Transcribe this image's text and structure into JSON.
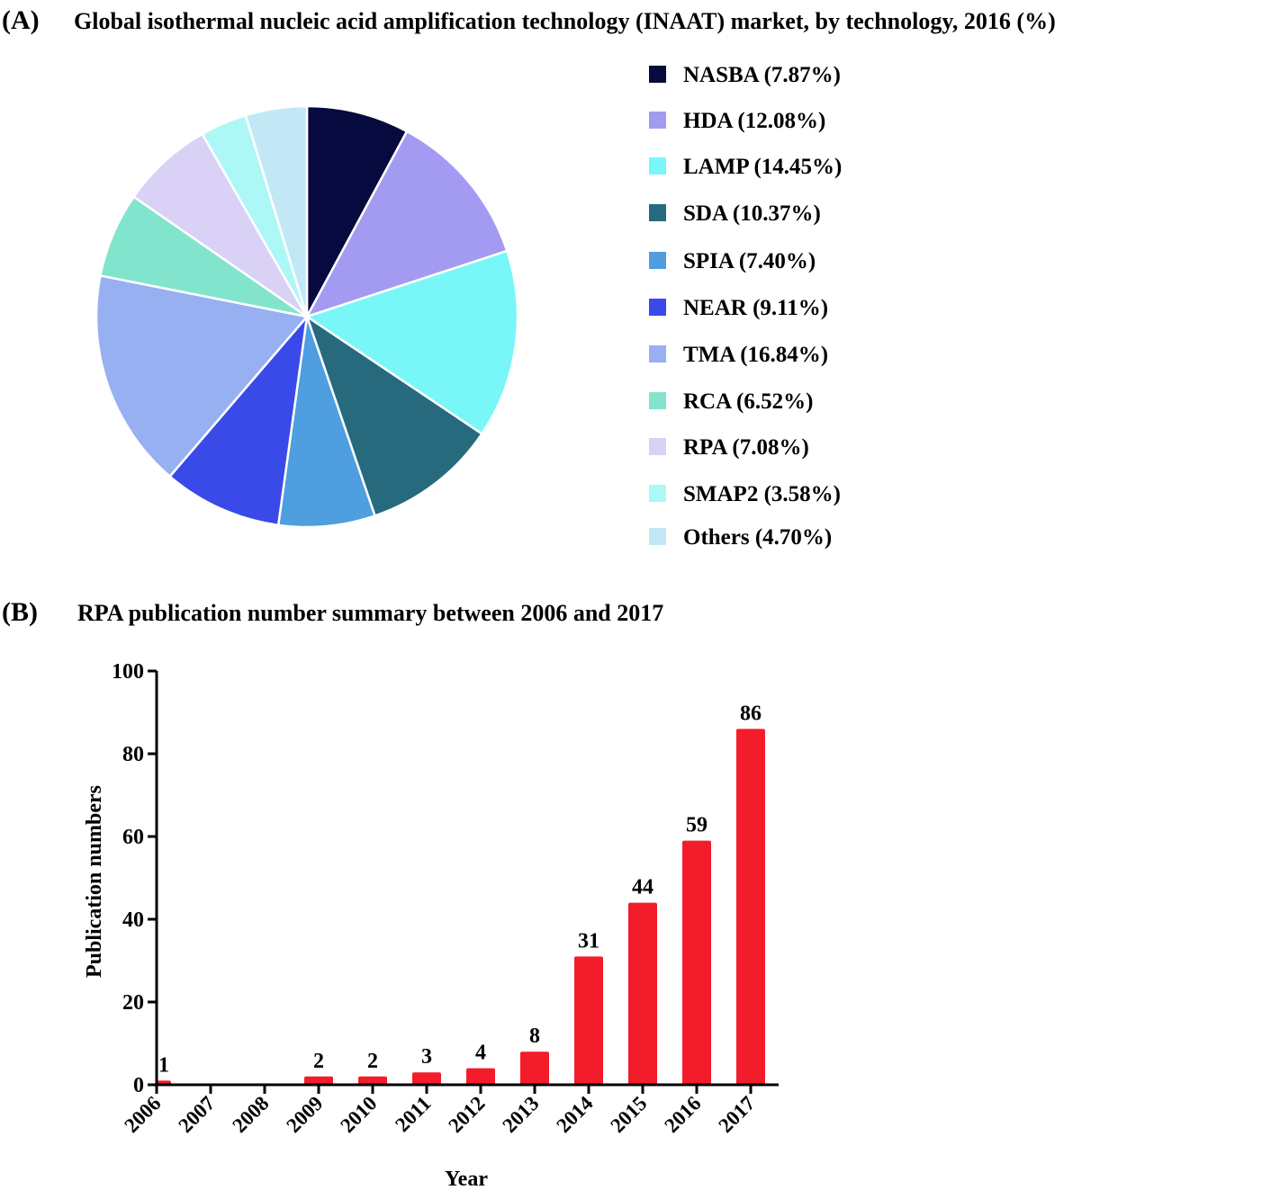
{
  "chart_data": [
    {
      "type": "pie",
      "panel_label": "(A)",
      "title": "Global isothermal nucleic acid amplification technology (INAAT) market, by technology, 2016 (%)",
      "legend_position": "right",
      "slices": [
        {
          "label": "NASBA (7.87%)",
          "name": "NASBA",
          "value": 7.87,
          "color": "#070a3e"
        },
        {
          "label": "HDA (12.08%)",
          "name": "HDA",
          "value": 12.08,
          "color": "#a39bf2"
        },
        {
          "label": "LAMP (14.45%)",
          "name": "LAMP",
          "value": 14.45,
          "color": "#79f6f8"
        },
        {
          "label": "SDA (10.37%)",
          "name": "SDA",
          "value": 10.37,
          "color": "#286a7d"
        },
        {
          "label": "SPIA (7.40%)",
          "name": "SPIA",
          "value": 7.4,
          "color": "#4e9ee0"
        },
        {
          "label": "NEAR (9.11%)",
          "name": "NEAR",
          "value": 9.11,
          "color": "#3a4ae8"
        },
        {
          "label": "TMA (16.84%)",
          "name": "TMA",
          "value": 16.84,
          "color": "#97b0f1"
        },
        {
          "label": "RCA (6.52%)",
          "name": "RCA",
          "value": 6.52,
          "color": "#82e4cc"
        },
        {
          "label": "RPA (7.08%)",
          "name": "RPA",
          "value": 7.08,
          "color": "#d9d1f6"
        },
        {
          "label": "SMAP2 (3.58%)",
          "name": "SMAP2",
          "value": 3.58,
          "color": "#aef7f7"
        },
        {
          "label": "Others (4.70%)",
          "name": "Others",
          "value": 4.7,
          "color": "#c2e8f6"
        }
      ]
    },
    {
      "type": "bar",
      "panel_label": "(B)",
      "title": "RPA publication number summary between 2006 and 2017",
      "xlabel": "Year",
      "ylabel": "Publication numbers",
      "ylim": [
        0,
        100
      ],
      "yticks": [
        "0",
        "20",
        "40",
        "60",
        "80",
        "100"
      ],
      "categories": [
        "2006",
        "2007",
        "2008",
        "2009",
        "2010",
        "2011",
        "2012",
        "2013",
        "2014",
        "2015",
        "2016",
        "2017"
      ],
      "values": [
        1,
        0,
        0,
        2,
        2,
        3,
        4,
        8,
        31,
        44,
        59,
        86
      ],
      "value_labels": [
        "1",
        "",
        "",
        "2",
        "2",
        "3",
        "4",
        "8",
        "31",
        "44",
        "59",
        "86"
      ],
      "bar_color": "#f31c2a",
      "grid": false
    }
  ]
}
